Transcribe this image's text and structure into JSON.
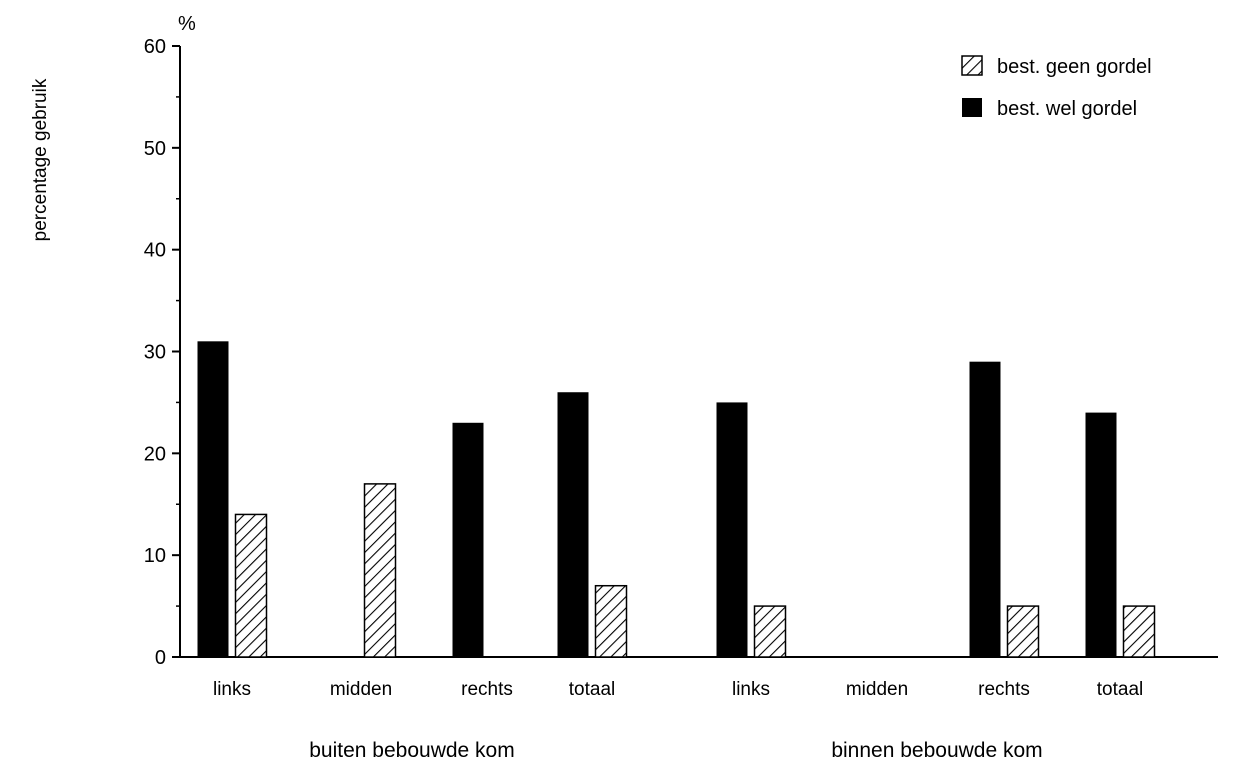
{
  "chart_data": {
    "type": "bar",
    "ylabel": "percentage gebruik",
    "y_unit": "%",
    "ylim": [
      0,
      60
    ],
    "yticks": [
      0,
      10,
      20,
      30,
      40,
      50,
      60
    ],
    "groups": [
      {
        "label": "buiten bebouwde kom",
        "categories": [
          "links",
          "midden",
          "rechts",
          "totaal"
        ]
      },
      {
        "label": "binnen bebouwde kom",
        "categories": [
          "links",
          "midden",
          "rechts",
          "totaal"
        ]
      }
    ],
    "categories": [
      "links",
      "midden",
      "rechts",
      "totaal",
      "links",
      "midden",
      "rechts",
      "totaal"
    ],
    "series": [
      {
        "name": "best. wel gordel",
        "color": "#000000",
        "pattern": "solid",
        "values": [
          31,
          0,
          23,
          26,
          25,
          0,
          29,
          24
        ]
      },
      {
        "name": "best. geen gordel",
        "color": "#000000",
        "pattern": "hatched",
        "values": [
          14,
          17,
          0,
          7,
          5,
          0,
          5,
          5
        ]
      }
    ],
    "legend_position": "top-right",
    "grid": false
  }
}
